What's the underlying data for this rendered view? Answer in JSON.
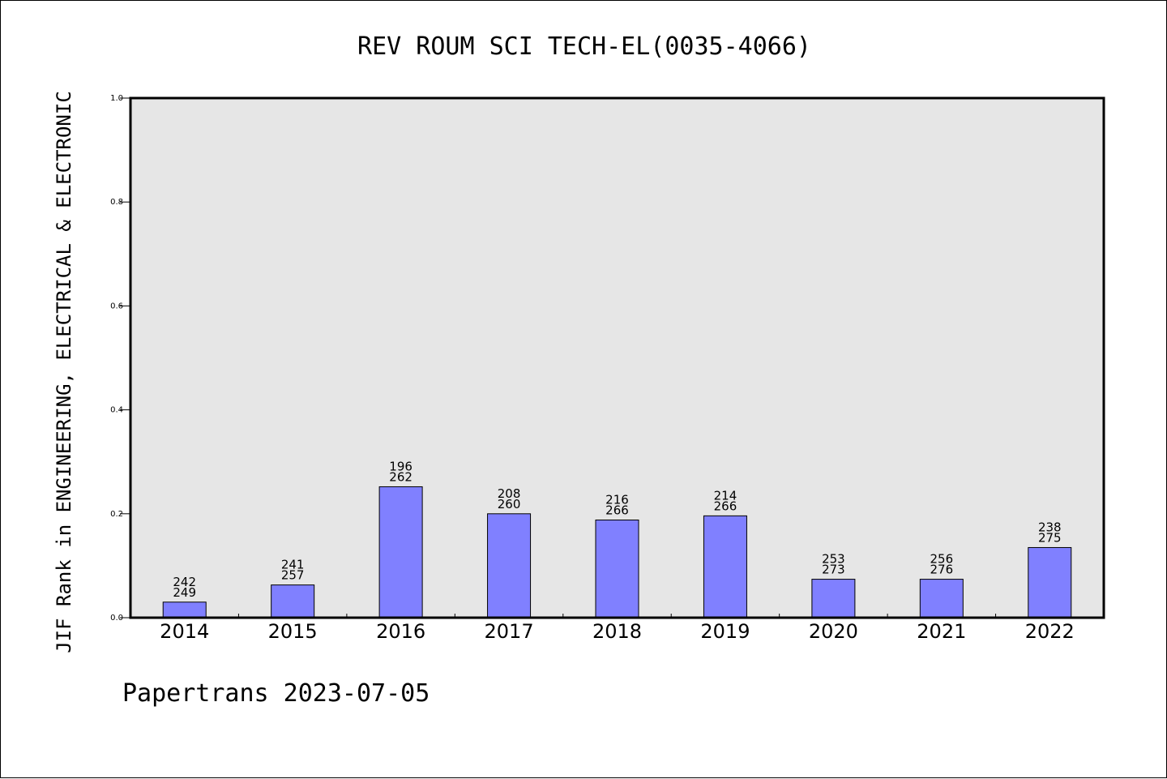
{
  "chart_data": {
    "type": "bar",
    "title": "REV ROUM SCI TECH-EL(0035-4066)",
    "xlabel": "",
    "ylabel": "JIF Rank in ENGINEERING, ELECTRICAL & ELECTRONIC",
    "ylim": [
      0,
      1.0
    ],
    "yticks": [
      "0.0",
      "0.2",
      "0.4",
      "0.6",
      "0.8",
      "1.0"
    ],
    "grid": false,
    "categories": [
      "2014",
      "2015",
      "2016",
      "2017",
      "2018",
      "2019",
      "2020",
      "2021",
      "2022"
    ],
    "values": [
      0.03,
      0.063,
      0.252,
      0.2,
      0.188,
      0.196,
      0.074,
      0.074,
      0.135
    ],
    "rank": [
      "242",
      "241",
      "196",
      "208",
      "216",
      "214",
      "253",
      "256",
      "238"
    ],
    "total": [
      "249",
      "257",
      "262",
      "260",
      "266",
      "266",
      "273",
      "276",
      "275"
    ],
    "colors": {
      "bar": "#8080ff",
      "plot_bg": "#e6e6e6",
      "frame": "#000000"
    }
  },
  "footer": "Papertrans 2023-07-05"
}
